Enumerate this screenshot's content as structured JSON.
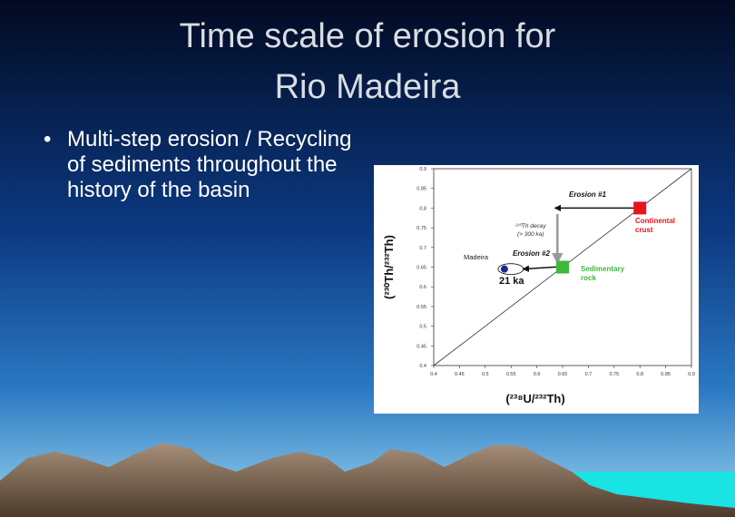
{
  "title_lines": [
    "Time scale of erosion for",
    "Rio Madeira"
  ],
  "bullets": [
    "Multi-step erosion / Recycling of sediments throughout the history of the basin"
  ],
  "chart_data": {
    "type": "scatter",
    "xlabel": "(²³⁸U/²³²Th)",
    "ylabel": "(²³⁰Th/²³²Th)",
    "xlim": [
      0.4,
      0.9
    ],
    "ylim": [
      0.4,
      0.9
    ],
    "xticks": [
      0.4,
      0.45,
      0.5,
      0.55,
      0.6,
      0.65,
      0.7,
      0.75,
      0.8,
      0.85,
      0.9
    ],
    "yticks": [
      0.4,
      0.45,
      0.5,
      0.55,
      0.6,
      0.65,
      0.7,
      0.75,
      0.8,
      0.85,
      0.9
    ],
    "series": [
      {
        "name": "Continental crust",
        "color": "#e8141b",
        "x": [
          0.8
        ],
        "values": [
          0.8
        ]
      },
      {
        "name": "Sedimentary rock",
        "color": "#3cb93a",
        "x": [
          0.65
        ],
        "values": [
          0.65
        ]
      },
      {
        "name": "Madeira",
        "color": "#1a2a8c",
        "x": [
          0.56
        ],
        "values": [
          0.645
        ]
      }
    ],
    "annotations": [
      "Erosion #1",
      "Erosion #2",
      "²³⁰Th decay",
      "(> 300 ka)",
      "21 ka"
    ]
  }
}
